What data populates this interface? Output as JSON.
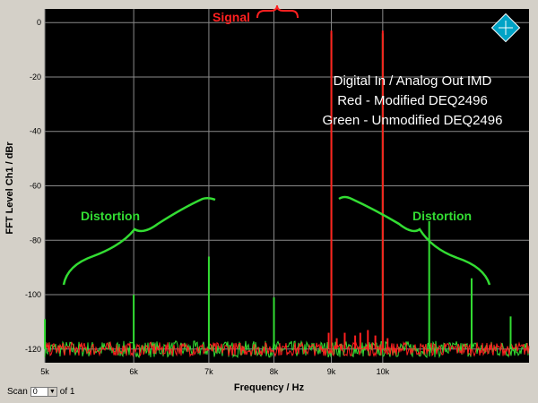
{
  "chart_data": {
    "type": "line",
    "title": "",
    "xlabel": "Frequency / Hz",
    "ylabel": "FFT Level Ch1 / dBr",
    "x_scale": "log",
    "xlim": [
      5000,
      13500
    ],
    "ylim": [
      -125,
      5
    ],
    "x_ticks": [
      5000,
      6000,
      7000,
      8000,
      9000,
      10000
    ],
    "x_tick_labels": [
      "5k",
      "6k",
      "7k",
      "8k",
      "9k",
      "10k"
    ],
    "y_ticks": [
      0,
      -20,
      -40,
      -60,
      -80,
      -100,
      -120
    ],
    "y_tick_labels": [
      "0",
      "-20",
      "-40",
      "-60",
      "-80",
      "-100",
      "-120"
    ],
    "grid": true,
    "noise_floor": -120,
    "series": [
      {
        "name": "Red - Modified DEQ2496",
        "color": "#ff2020",
        "peaks": [
          [
            9000,
            -3
          ],
          [
            10000,
            -3
          ],
          [
            8950,
            -114
          ],
          [
            9100,
            -116
          ],
          [
            9250,
            -114
          ],
          [
            9450,
            -115
          ],
          [
            9550,
            -114
          ],
          [
            9700,
            -113
          ],
          [
            9850,
            -115
          ],
          [
            10100,
            -116
          ]
        ]
      },
      {
        "name": "Green - Unmodified DEQ2496",
        "color": "#33dd33",
        "peaks": [
          [
            5000,
            -109
          ],
          [
            6000,
            -100
          ],
          [
            7000,
            -86
          ],
          [
            8000,
            -101
          ],
          [
            9000,
            -4
          ],
          [
            10000,
            -4
          ],
          [
            11000,
            -73
          ],
          [
            12000,
            -94
          ],
          [
            13000,
            -108
          ]
        ]
      }
    ]
  },
  "annotations": {
    "signal": "Signal",
    "distortion_left": "Distortion",
    "distortion_right": "Distortion",
    "legend_lines": [
      "Digital In / Analog Out IMD",
      "Red - Modified DEQ2496",
      "Green - Unmodified DEQ2496"
    ]
  },
  "scan": {
    "label": "Scan",
    "value": "0",
    "suffix": "of 1"
  },
  "colors": {
    "plot_bg": "#000000",
    "grid": "#8a8a8a",
    "signal_label": "#ff2020",
    "distortion_label": "#33dd33",
    "legend_text": "#ffffff",
    "logo": "#00a3c6"
  }
}
